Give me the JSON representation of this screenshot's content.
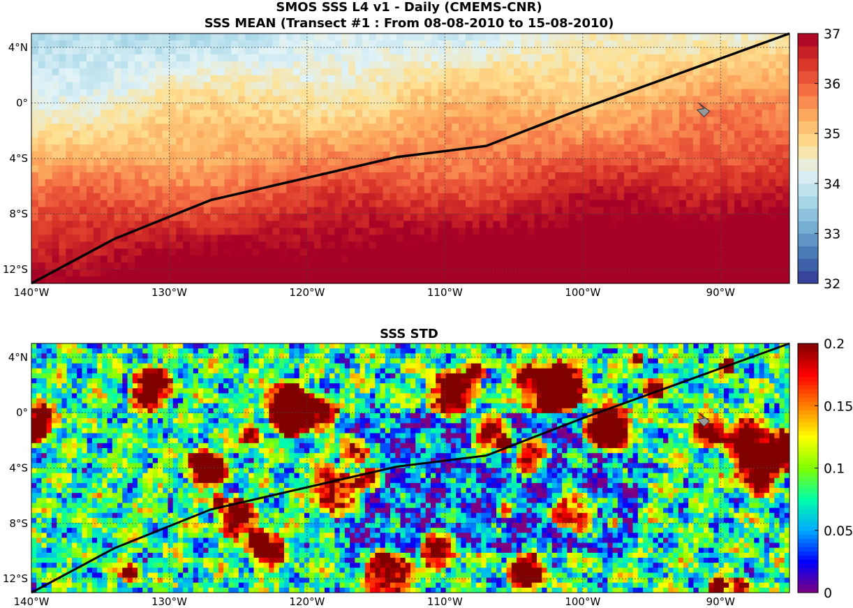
{
  "title_line1": "SMOS SSS L4 v1 - Daily (CMEMS-CNR)",
  "title_line2": "SSS MEAN (Transect #1 : From 08-08-2010 to 15-08-2010)",
  "panel2_title": "SSS STD",
  "lat_labels": [
    "4°N",
    "0°",
    "4°S",
    "8°S",
    "12°S"
  ],
  "lat_values": [
    4,
    0,
    -4,
    -8,
    -12
  ],
  "lon_labels": [
    "140°W",
    "130°W",
    "120°W",
    "110°W",
    "100°W",
    "90°W"
  ],
  "lon_values": [
    -140,
    -130,
    -120,
    -110,
    -100,
    -90
  ],
  "map_extent": {
    "lon_min": -140,
    "lon_max": -85,
    "lat_min": -13,
    "lat_max": 5
  },
  "transect_lonlat": [
    [
      -140,
      -13
    ],
    [
      -134,
      -9.8
    ],
    [
      -127,
      -7
    ],
    [
      -113.5,
      -3.9
    ],
    [
      -107,
      -3.1
    ],
    [
      -100,
      -0.4
    ],
    [
      -85,
      5
    ]
  ],
  "mean_colorbar": {
    "min": 32,
    "max": 37,
    "tick_labels": [
      "37",
      "36",
      "35",
      "34",
      "33",
      "32"
    ],
    "tick_values": [
      37,
      36,
      35,
      34,
      33,
      32
    ]
  },
  "std_colorbar": {
    "min": 0,
    "max": 0.2,
    "tick_labels": [
      "0.2",
      "0.15",
      "0.1",
      "0.05",
      "0"
    ],
    "tick_values": [
      0.2,
      0.15,
      0.1,
      0.05,
      0
    ]
  },
  "colors": {
    "mean_scale": [
      "#313695",
      "#4575b4",
      "#74add1",
      "#abd9e9",
      "#e0f3f8",
      "#fee090",
      "#fdae61",
      "#f46d43",
      "#d73027",
      "#a50026"
    ],
    "std_scale": [
      "#7f007f",
      "#0000ff",
      "#00aaff",
      "#00ffaa",
      "#80ff00",
      "#ffff00",
      "#ff8000",
      "#ff0000",
      "#800000"
    ],
    "transect": "#000000"
  }
}
